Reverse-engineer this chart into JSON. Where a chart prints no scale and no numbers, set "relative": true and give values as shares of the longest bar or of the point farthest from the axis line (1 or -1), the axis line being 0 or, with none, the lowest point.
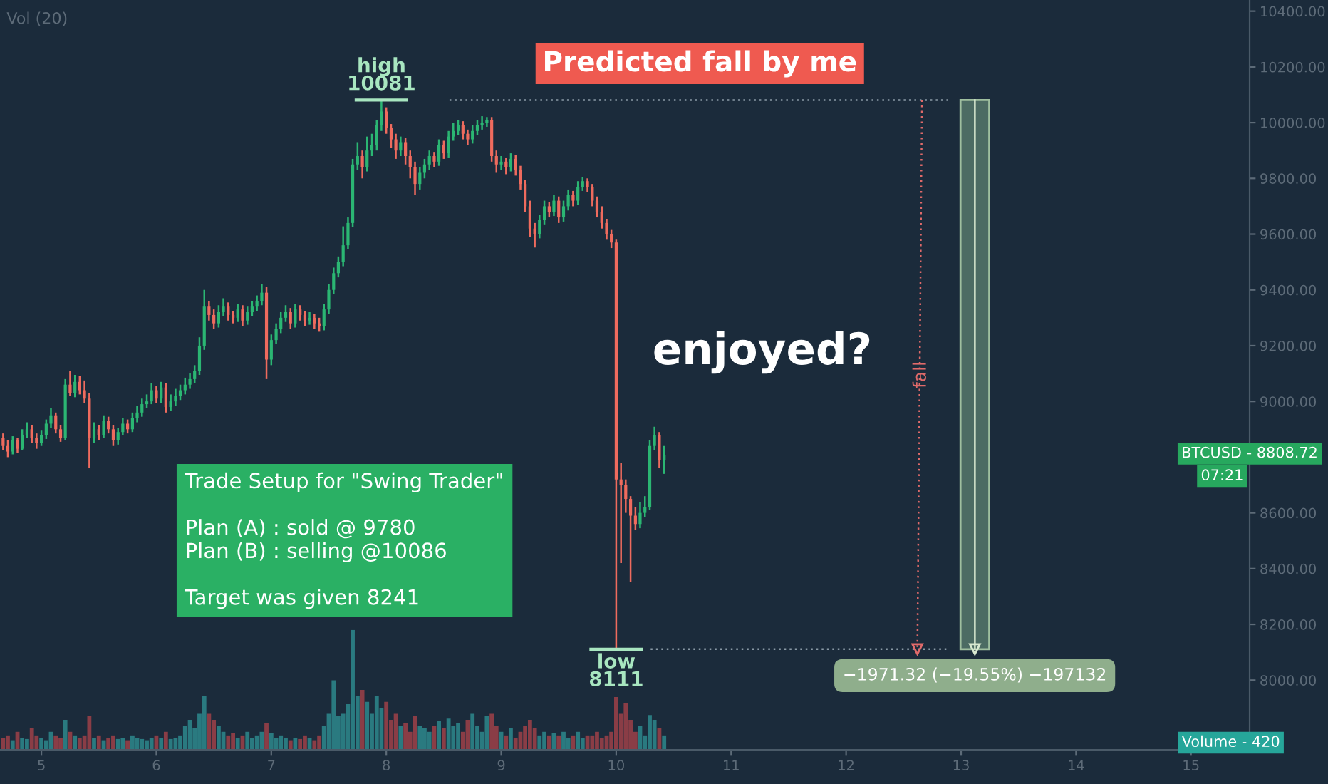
{
  "chart_data": [
    {
      "type": "candlestick",
      "title": "Predicted fall by me",
      "colors": [
        "#ef6b5e",
        "#ef6b5e",
        "#2bb673",
        "#ef6b5e",
        "#2bb673",
        "#2bb673",
        "#ef6b5e",
        "#ef6b5e",
        "#2bb673",
        "#2bb673",
        "#2bb673",
        "#ef6b5e",
        "#ef6b5e",
        "#2bb673",
        "#ef6b5e",
        "#2bb673",
        "#ef6b5e",
        "#ef6b5e",
        "#ef6b5e",
        "#2bb673",
        "#ef6b5e",
        "#2bb673",
        "#ef6b5e",
        "#ef6b5e",
        "#2bb673",
        "#2bb673",
        "#ef6b5e",
        "#2bb673",
        "#2bb673",
        "#2bb673",
        "#2bb673",
        "#2bb673",
        "#ef6b5e",
        "#2bb673",
        "#ef6b5e",
        "#2bb673",
        "#2bb673",
        "#2bb673",
        "#2bb673",
        "#2bb673",
        "#2bb673",
        "#2bb673",
        "#2bb673",
        "#ef6b5e",
        "#ef6b5e",
        "#2bb673",
        "#2bb673",
        "#ef6b5e",
        "#ef6b5e",
        "#2bb673",
        "#ef6b5e",
        "#2bb673",
        "#2bb673",
        "#2bb673",
        "#2bb673",
        "#ef6b5e",
        "#2bb673",
        "#2bb673",
        "#2bb673",
        "#2bb673",
        "#ef6b5e",
        "#2bb673",
        "#ef6b5e",
        "#ef6b5e",
        "#2bb673",
        "#ef6b5e",
        "#ef6b5e",
        "#2bb673",
        "#2bb673",
        "#2bb673",
        "#2bb673",
        "#2bb673",
        "#2bb673",
        "#2bb673",
        "#2bb673",
        "#ef6b5e",
        "#2bb673",
        "#2bb673",
        "#2bb673",
        "#2bb673",
        "#ef6b5e",
        "#ef6b5e",
        "#ef6b5e",
        "#2bb673",
        "#ef6b5e",
        "#ef6b5e",
        "#ef6b5e",
        "#2bb673",
        "#2bb673",
        "#2bb673",
        "#ef6b5e",
        "#2bb673",
        "#ef6b5e",
        "#2bb673",
        "#2bb673",
        "#2bb673",
        "#ef6b5e",
        "#ef6b5e",
        "#2bb673",
        "#2bb673",
        "#2bb673",
        "#2bb673",
        "#ef6b5e",
        "#ef6b5e",
        "#2bb673",
        "#ef6b5e",
        "#2bb673",
        "#ef6b5e",
        "#ef6b5e",
        "#ef6b5e",
        "#ef6b5e",
        "#ef6b5e",
        "#2bb673",
        "#2bb673",
        "#ef6b5e",
        "#2bb673",
        "#ef6b5e",
        "#2bb673",
        "#2bb673",
        "#ef6b5e",
        "#2bb673",
        "#2bb673",
        "#ef6b5e",
        "#ef6b5e",
        "#ef6b5e",
        "#ef6b5e",
        "#ef6b5e",
        "#ef6b5e",
        "#ef6b5e",
        "#ef6b5e",
        "#ef6b5e",
        "#ef6b5e",
        "#ef6b5e",
        "#2bb673",
        "#2bb673",
        "#2bb673",
        "#2bb673",
        "#ef6b5e",
        "#2bb673"
      ],
      "x": [
        4.667,
        4.708,
        4.75,
        4.792,
        4.833,
        4.875,
        4.917,
        4.958,
        5,
        5.042,
        5.083,
        5.125,
        5.167,
        5.208,
        5.25,
        5.292,
        5.333,
        5.375,
        5.417,
        5.458,
        5.5,
        5.542,
        5.583,
        5.625,
        5.667,
        5.708,
        5.75,
        5.792,
        5.833,
        5.875,
        5.917,
        5.958,
        6,
        6.042,
        6.083,
        6.125,
        6.167,
        6.208,
        6.25,
        6.292,
        6.333,
        6.375,
        6.417,
        6.458,
        6.5,
        6.542,
        6.583,
        6.625,
        6.667,
        6.708,
        6.75,
        6.792,
        6.833,
        6.875,
        6.917,
        6.958,
        7,
        7.042,
        7.083,
        7.125,
        7.167,
        7.208,
        7.25,
        7.292,
        7.333,
        7.375,
        7.417,
        7.458,
        7.5,
        7.542,
        7.583,
        7.625,
        7.667,
        7.708,
        7.75,
        7.792,
        7.833,
        7.875,
        7.917,
        7.958,
        8,
        8.042,
        8.083,
        8.125,
        8.167,
        8.208,
        8.25,
        8.292,
        8.333,
        8.375,
        8.417,
        8.458,
        8.5,
        8.542,
        8.583,
        8.625,
        8.667,
        8.708,
        8.75,
        8.792,
        8.833,
        8.875,
        8.917,
        8.958,
        9,
        9.042,
        9.083,
        9.125,
        9.167,
        9.208,
        9.25,
        9.292,
        9.333,
        9.375,
        9.417,
        9.458,
        9.5,
        9.542,
        9.583,
        9.625,
        9.667,
        9.708,
        9.75,
        9.792,
        9.833,
        9.875,
        9.917,
        9.958,
        10,
        10.042,
        10.083,
        10.125,
        10.167,
        10.208,
        10.25,
        10.292,
        10.333,
        10.375,
        10.417
      ],
      "ohlc": [
        [
          8870,
          8885,
          8825,
          8840
        ],
        [
          8840,
          8860,
          8800,
          8820
        ],
        [
          8820,
          8875,
          8810,
          8860
        ],
        [
          8860,
          8870,
          8815,
          8830
        ],
        [
          8830,
          8900,
          8825,
          8880
        ],
        [
          8880,
          8925,
          8870,
          8900
        ],
        [
          8900,
          8915,
          8850,
          8870
        ],
        [
          8870,
          8885,
          8830,
          8850
        ],
        [
          8850,
          8895,
          8840,
          8880
        ],
        [
          8880,
          8935,
          8865,
          8920
        ],
        [
          8920,
          8975,
          8905,
          8950
        ],
        [
          8950,
          8960,
          8885,
          8900
        ],
        [
          8900,
          8915,
          8855,
          8870
        ],
        [
          8870,
          9080,
          8860,
          9060
        ],
        [
          9060,
          9110,
          9020,
          9030
        ],
        [
          9030,
          9095,
          9015,
          9070
        ],
        [
          9070,
          9090,
          9025,
          9040
        ],
        [
          9040,
          9075,
          8995,
          9010
        ],
        [
          9010,
          9030,
          8760,
          8870
        ],
        [
          8870,
          8925,
          8850,
          8900
        ],
        [
          8900,
          8915,
          8860,
          8880
        ],
        [
          8880,
          8950,
          8870,
          8930
        ],
        [
          8930,
          8945,
          8885,
          8900
        ],
        [
          8900,
          8915,
          8840,
          8860
        ],
        [
          8860,
          8905,
          8845,
          8890
        ],
        [
          8890,
          8940,
          8880,
          8920
        ],
        [
          8920,
          8935,
          8885,
          8900
        ],
        [
          8900,
          8960,
          8890,
          8940
        ],
        [
          8940,
          8985,
          8925,
          8960
        ],
        [
          8960,
          9010,
          8945,
          8990
        ],
        [
          8990,
          9025,
          8975,
          9000
        ],
        [
          9000,
          9065,
          8990,
          9040
        ],
        [
          9040,
          9055,
          8995,
          9010
        ],
        [
          9010,
          9070,
          8995,
          9050
        ],
        [
          9050,
          9065,
          8960,
          8980
        ],
        [
          8980,
          9025,
          8965,
          9000
        ],
        [
          9000,
          9045,
          8985,
          9020
        ],
        [
          9020,
          9060,
          9005,
          9040
        ],
        [
          9040,
          9085,
          9025,
          9060
        ],
        [
          9060,
          9100,
          9045,
          9080
        ],
        [
          9080,
          9130,
          9065,
          9110
        ],
        [
          9110,
          9230,
          9095,
          9200
        ],
        [
          9200,
          9400,
          9185,
          9340
        ],
        [
          9340,
          9360,
          9290,
          9310
        ],
        [
          9310,
          9330,
          9260,
          9280
        ],
        [
          9280,
          9345,
          9265,
          9320
        ],
        [
          9320,
          9370,
          9305,
          9340
        ],
        [
          9340,
          9355,
          9290,
          9310
        ],
        [
          9310,
          9325,
          9280,
          9300
        ],
        [
          9300,
          9350,
          9285,
          9330
        ],
        [
          9330,
          9345,
          9270,
          9290
        ],
        [
          9290,
          9340,
          9275,
          9320
        ],
        [
          9320,
          9360,
          9305,
          9340
        ],
        [
          9340,
          9380,
          9325,
          9360
        ],
        [
          9360,
          9420,
          9345,
          9390
        ],
        [
          9390,
          9410,
          9080,
          9150
        ],
        [
          9150,
          9240,
          9130,
          9220
        ],
        [
          9220,
          9280,
          9205,
          9260
        ],
        [
          9260,
          9320,
          9245,
          9300
        ],
        [
          9300,
          9345,
          9285,
          9320
        ],
        [
          9320,
          9335,
          9260,
          9280
        ],
        [
          9280,
          9350,
          9265,
          9330
        ],
        [
          9330,
          9345,
          9290,
          9310
        ],
        [
          9310,
          9325,
          9270,
          9290
        ],
        [
          9290,
          9320,
          9275,
          9300
        ],
        [
          9300,
          9315,
          9260,
          9280
        ],
        [
          9280,
          9300,
          9250,
          9270
        ],
        [
          9270,
          9350,
          9255,
          9330
        ],
        [
          9330,
          9420,
          9315,
          9400
        ],
        [
          9400,
          9480,
          9385,
          9460
        ],
        [
          9460,
          9520,
          9445,
          9500
        ],
        [
          9500,
          9628,
          9485,
          9560
        ],
        [
          9560,
          9660,
          9545,
          9640
        ],
        [
          9640,
          9870,
          9625,
          9850
        ],
        [
          9850,
          9930,
          9830,
          9880
        ],
        [
          9880,
          9900,
          9800,
          9840
        ],
        [
          9840,
          9950,
          9825,
          9900
        ],
        [
          9900,
          9960,
          9880,
          9920
        ],
        [
          9920,
          10010,
          9900,
          9990
        ],
        [
          9990,
          10081,
          9970,
          10040
        ],
        [
          10040,
          10055,
          9960,
          9980
        ],
        [
          9980,
          9995,
          9910,
          9940
        ],
        [
          9940,
          9960,
          9870,
          9900
        ],
        [
          9900,
          9950,
          9880,
          9930
        ],
        [
          9930,
          9945,
          9850,
          9880
        ],
        [
          9880,
          9900,
          9800,
          9840
        ],
        [
          9840,
          9860,
          9740,
          9780
        ],
        [
          9780,
          9840,
          9760,
          9820
        ],
        [
          9820,
          9870,
          9800,
          9850
        ],
        [
          9850,
          9900,
          9830,
          9880
        ],
        [
          9880,
          9895,
          9840,
          9860
        ],
        [
          9860,
          9940,
          9845,
          9920
        ],
        [
          9920,
          9935,
          9870,
          9890
        ],
        [
          9890,
          9970,
          9875,
          9950
        ],
        [
          9950,
          10000,
          9935,
          9970
        ],
        [
          9970,
          10010,
          9955,
          9990
        ],
        [
          9990,
          10005,
          9940,
          9960
        ],
        [
          9960,
          9975,
          9920,
          9940
        ],
        [
          9940,
          9990,
          9925,
          9970
        ],
        [
          9970,
          10010,
          9955,
          9990
        ],
        [
          9990,
          10023,
          9975,
          10000
        ],
        [
          10000,
          10020,
          9985,
          10010
        ],
        [
          10010,
          10020,
          9860,
          9880
        ],
        [
          9880,
          9900,
          9820,
          9850
        ],
        [
          9850,
          9880,
          9830,
          9860
        ],
        [
          9860,
          9875,
          9815,
          9840
        ],
        [
          9840,
          9890,
          9825,
          9870
        ],
        [
          9870,
          9885,
          9810,
          9830
        ],
        [
          9830,
          9845,
          9760,
          9780
        ],
        [
          9780,
          9795,
          9680,
          9700
        ],
        [
          9700,
          9720,
          9590,
          9620
        ],
        [
          9620,
          9640,
          9552,
          9600
        ],
        [
          9600,
          9670,
          9585,
          9650
        ],
        [
          9650,
          9720,
          9635,
          9700
        ],
        [
          9700,
          9715,
          9660,
          9680
        ],
        [
          9680,
          9740,
          9665,
          9720
        ],
        [
          9720,
          9735,
          9640,
          9660
        ],
        [
          9660,
          9720,
          9645,
          9700
        ],
        [
          9700,
          9760,
          9685,
          9740
        ],
        [
          9740,
          9755,
          9700,
          9720
        ],
        [
          9720,
          9790,
          9705,
          9770
        ],
        [
          9770,
          9805,
          9755,
          9790
        ],
        [
          9790,
          9800,
          9750,
          9770
        ],
        [
          9770,
          9780,
          9700,
          9720
        ],
        [
          9720,
          9735,
          9660,
          9680
        ],
        [
          9680,
          9700,
          9620,
          9640
        ],
        [
          9640,
          9655,
          9580,
          9600
        ],
        [
          9600,
          9615,
          9550,
          9570
        ],
        [
          9570,
          9580,
          8111,
          8720
        ],
        [
          8720,
          8780,
          8420,
          8700
        ],
        [
          8700,
          8720,
          8600,
          8650
        ],
        [
          8650,
          8660,
          8352,
          8590
        ],
        [
          8590,
          8620,
          8540,
          8560
        ],
        [
          8560,
          8640,
          8545,
          8600
        ],
        [
          8600,
          8660,
          8585,
          8620
        ],
        [
          8620,
          8860,
          8610,
          8840
        ],
        [
          8840,
          8909,
          8825,
          8880
        ],
        [
          8880,
          8890,
          8760,
          8790
        ],
        [
          8790,
          8840,
          8740,
          8808.72
        ]
      ],
      "xlim": [
        4.64,
        15.51
      ],
      "xticks": [
        5,
        6,
        7,
        8,
        9,
        10,
        11,
        12,
        13,
        14,
        15
      ],
      "series": [
        {
          "type": "line",
          "x": [
            8.55,
            12.9
          ],
          "values": [
            10081,
            10081
          ],
          "color": "#8a9aa6",
          "line_style": "dotted"
        },
        {
          "type": "line",
          "x": [
            10.3,
            12.9
          ],
          "values": [
            8111,
            8111
          ],
          "color": "#8a9aa6",
          "line_style": "dotted"
        },
        {
          "type": "line",
          "x": [
            12.66,
            12.62
          ],
          "values": [
            10081,
            8111
          ],
          "color": "#e06a6a",
          "line_style": "dotted"
        },
        {
          "type": "bar",
          "x": [
            13.12
          ],
          "base": [
            10081
          ],
          "values": [
            -1970
          ],
          "color": "#4c6b63"
        },
        {
          "type": "line",
          "x": [
            13.12,
            13.12
          ],
          "values": [
            10081,
            8111
          ],
          "color": "#d8e8d0",
          "line_style": "solid"
        }
      ],
      "ylim": [
        7750,
        10440
      ],
      "yticks": [
        {
          "value": 8000,
          "label": "8000.00"
        },
        {
          "value": 8200,
          "label": "8200.00"
        },
        {
          "value": 8400,
          "label": "8400.00"
        },
        {
          "value": 8600,
          "label": "8600.00"
        },
        {
          "value": 9000,
          "label": "9000.00"
        },
        {
          "value": 9200,
          "label": "9200.00"
        },
        {
          "value": 9400,
          "label": "9400.00"
        },
        {
          "value": 9600,
          "label": "9600.00"
        },
        {
          "value": 9800,
          "label": "9800.00"
        },
        {
          "value": 10000,
          "label": "10000.00"
        },
        {
          "value": 10200,
          "label": "10200.00"
        },
        {
          "value": 10400,
          "label": "10400.00"
        }
      ],
      "annotations": [
        {
          "text": "high\n10081",
          "x": 7.958,
          "y": 10081
        },
        {
          "text": "low\n8111",
          "x": 10,
          "y": 8111
        },
        "−1971.32 (−19.55%) −197132",
        "BTCUSD - 8808.72",
        "Trade Setup for \"Swing Trader\"\n\nPlan (A) : sold @ 9780\nPlan (B) : selling @10086\n\nTarget was given 8241",
        "enjoyed?",
        "fall",
        "07:21"
      ]
    },
    {
      "type": "bar",
      "relative": true,
      "title": "Vol (20)",
      "colors": [
        "#8a3d46",
        "#8a3d46",
        "#2a7a80",
        "#8a3d46",
        "#2a7a80",
        "#2a7a80",
        "#8a3d46",
        "#8a3d46",
        "#2a7a80",
        "#2a7a80",
        "#2a7a80",
        "#8a3d46",
        "#8a3d46",
        "#2a7a80",
        "#8a3d46",
        "#2a7a80",
        "#8a3d46",
        "#8a3d46",
        "#8a3d46",
        "#2a7a80",
        "#8a3d46",
        "#2a7a80",
        "#8a3d46",
        "#8a3d46",
        "#2a7a80",
        "#2a7a80",
        "#8a3d46",
        "#2a7a80",
        "#2a7a80",
        "#2a7a80",
        "#2a7a80",
        "#2a7a80",
        "#8a3d46",
        "#2a7a80",
        "#8a3d46",
        "#2a7a80",
        "#2a7a80",
        "#2a7a80",
        "#2a7a80",
        "#2a7a80",
        "#2a7a80",
        "#2a7a80",
        "#2a7a80",
        "#8a3d46",
        "#8a3d46",
        "#2a7a80",
        "#2a7a80",
        "#8a3d46",
        "#8a3d46",
        "#2a7a80",
        "#8a3d46",
        "#2a7a80",
        "#2a7a80",
        "#2a7a80",
        "#2a7a80",
        "#8a3d46",
        "#2a7a80",
        "#2a7a80",
        "#2a7a80",
        "#2a7a80",
        "#8a3d46",
        "#2a7a80",
        "#8a3d46",
        "#8a3d46",
        "#2a7a80",
        "#8a3d46",
        "#8a3d46",
        "#2a7a80",
        "#2a7a80",
        "#2a7a80",
        "#2a7a80",
        "#2a7a80",
        "#2a7a80",
        "#2a7a80",
        "#2a7a80",
        "#8a3d46",
        "#2a7a80",
        "#2a7a80",
        "#2a7a80",
        "#2a7a80",
        "#8a3d46",
        "#8a3d46",
        "#8a3d46",
        "#2a7a80",
        "#8a3d46",
        "#8a3d46",
        "#8a3d46",
        "#2a7a80",
        "#2a7a80",
        "#2a7a80",
        "#8a3d46",
        "#2a7a80",
        "#8a3d46",
        "#2a7a80",
        "#2a7a80",
        "#2a7a80",
        "#8a3d46",
        "#8a3d46",
        "#2a7a80",
        "#2a7a80",
        "#2a7a80",
        "#2a7a80",
        "#8a3d46",
        "#8a3d46",
        "#2a7a80",
        "#8a3d46",
        "#2a7a80",
        "#8a3d46",
        "#8a3d46",
        "#8a3d46",
        "#8a3d46",
        "#8a3d46",
        "#2a7a80",
        "#2a7a80",
        "#8a3d46",
        "#2a7a80",
        "#8a3d46",
        "#2a7a80",
        "#2a7a80",
        "#8a3d46",
        "#2a7a80",
        "#2a7a80",
        "#8a3d46",
        "#8a3d46",
        "#8a3d46",
        "#8a3d46",
        "#8a3d46",
        "#8a3d46",
        "#8a3d46",
        "#8a3d46",
        "#8a3d46",
        "#8a3d46",
        "#8a3d46",
        "#2a7a80",
        "#2a7a80",
        "#2a7a80",
        "#2a7a80",
        "#8a3d46",
        "#2a7a80"
      ],
      "x": [
        4.667,
        4.708,
        4.75,
        4.792,
        4.833,
        4.875,
        4.917,
        4.958,
        5,
        5.042,
        5.083,
        5.125,
        5.167,
        5.208,
        5.25,
        5.292,
        5.333,
        5.375,
        5.417,
        5.458,
        5.5,
        5.542,
        5.583,
        5.625,
        5.667,
        5.708,
        5.75,
        5.792,
        5.833,
        5.875,
        5.917,
        5.958,
        6,
        6.042,
        6.083,
        6.125,
        6.167,
        6.208,
        6.25,
        6.292,
        6.333,
        6.375,
        6.417,
        6.458,
        6.5,
        6.542,
        6.583,
        6.625,
        6.667,
        6.708,
        6.75,
        6.792,
        6.833,
        6.875,
        6.917,
        6.958,
        7,
        7.042,
        7.083,
        7.125,
        7.167,
        7.208,
        7.25,
        7.292,
        7.333,
        7.375,
        7.417,
        7.458,
        7.5,
        7.542,
        7.583,
        7.625,
        7.667,
        7.708,
        7.75,
        7.792,
        7.833,
        7.875,
        7.917,
        7.958,
        8,
        8.042,
        8.083,
        8.125,
        8.167,
        8.208,
        8.25,
        8.292,
        8.333,
        8.375,
        8.417,
        8.458,
        8.5,
        8.542,
        8.583,
        8.625,
        8.667,
        8.708,
        8.75,
        8.792,
        8.833,
        8.875,
        8.917,
        8.958,
        9,
        9.042,
        9.083,
        9.125,
        9.167,
        9.208,
        9.25,
        9.292,
        9.333,
        9.375,
        9.417,
        9.458,
        9.5,
        9.542,
        9.583,
        9.625,
        9.667,
        9.708,
        9.75,
        9.792,
        9.833,
        9.875,
        9.917,
        9.958,
        10,
        10.042,
        10.083,
        10.125,
        10.167,
        10.208,
        10.25,
        10.292,
        10.333,
        10.375,
        10.417
      ],
      "xlim": [
        4.64,
        15.51
      ],
      "values": [
        0.1,
        0.12,
        0.08,
        0.15,
        0.1,
        0.09,
        0.18,
        0.12,
        0.1,
        0.08,
        0.15,
        0.12,
        0.1,
        0.25,
        0.15,
        0.12,
        0.1,
        0.12,
        0.28,
        0.1,
        0.12,
        0.08,
        0.1,
        0.12,
        0.09,
        0.1,
        0.08,
        0.12,
        0.1,
        0.09,
        0.08,
        0.1,
        0.12,
        0.1,
        0.15,
        0.09,
        0.1,
        0.12,
        0.2,
        0.25,
        0.18,
        0.3,
        0.45,
        0.3,
        0.25,
        0.2,
        0.15,
        0.12,
        0.14,
        0.1,
        0.12,
        0.15,
        0.1,
        0.12,
        0.15,
        0.22,
        0.14,
        0.1,
        0.12,
        0.1,
        0.08,
        0.1,
        0.09,
        0.12,
        0.1,
        0.08,
        0.12,
        0.2,
        0.3,
        0.58,
        0.28,
        0.3,
        0.38,
        1.0,
        0.45,
        0.5,
        0.4,
        0.3,
        0.45,
        0.35,
        0.4,
        0.25,
        0.3,
        0.2,
        0.22,
        0.15,
        0.28,
        0.2,
        0.18,
        0.15,
        0.2,
        0.24,
        0.18,
        0.26,
        0.2,
        0.22,
        0.15,
        0.25,
        0.3,
        0.2,
        0.15,
        0.28,
        0.3,
        0.2,
        0.15,
        0.12,
        0.18,
        0.1,
        0.15,
        0.2,
        0.25,
        0.18,
        0.12,
        0.15,
        0.12,
        0.14,
        0.12,
        0.15,
        0.1,
        0.12,
        0.15,
        0.1,
        0.12,
        0.12,
        0.15,
        0.1,
        0.12,
        0.15,
        0.44,
        0.3,
        0.39,
        0.25,
        0.15,
        0.2,
        0.12,
        0.29,
        0.25,
        0.18,
        0.12
      ],
      "annotations": [
        "Volume - 420"
      ]
    }
  ]
}
